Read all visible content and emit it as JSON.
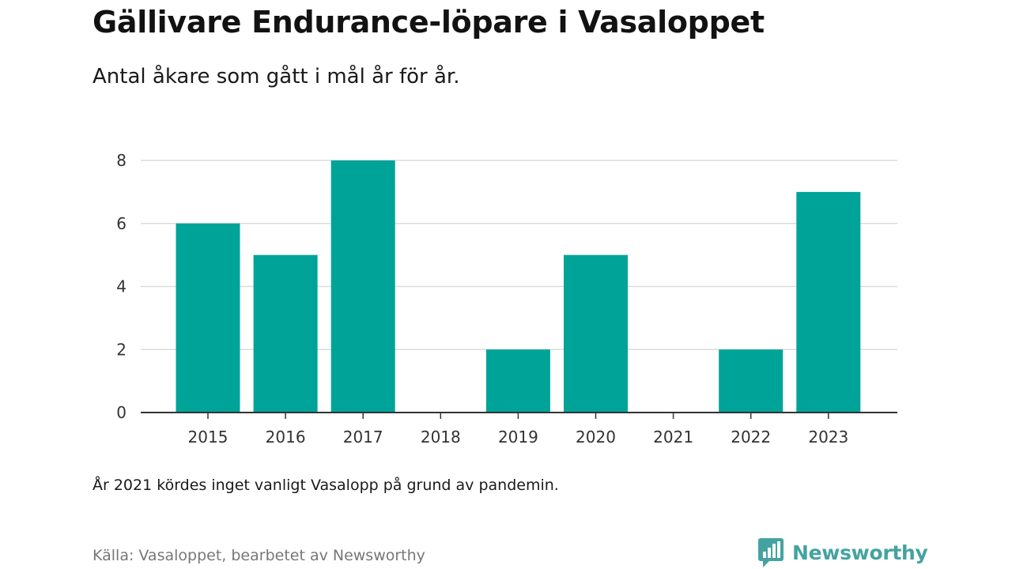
{
  "chart_data": {
    "type": "bar",
    "title": "Gällivare Endurance-löpare i Vasaloppet",
    "subtitle": "Antal åkare som gått i mål år för år.",
    "categories": [
      "2015",
      "2016",
      "2017",
      "2018",
      "2019",
      "2020",
      "2021",
      "2022",
      "2023"
    ],
    "values": [
      6,
      5,
      8,
      0,
      2,
      5,
      0,
      2,
      7
    ],
    "ylim": [
      0,
      8
    ],
    "yticks": [
      0,
      2,
      4,
      6,
      8
    ],
    "grid": true,
    "bar_color": "#00a398",
    "note": "År 2021 kördes inget vanligt Vasalopp på grund av pandemin.",
    "source": "Källa: Vasaloppet, bearbetet av Newsworthy"
  },
  "brand": {
    "name": "Newsworthy",
    "icon": "newsworthy-logo-icon",
    "color": "#44a3a0"
  }
}
